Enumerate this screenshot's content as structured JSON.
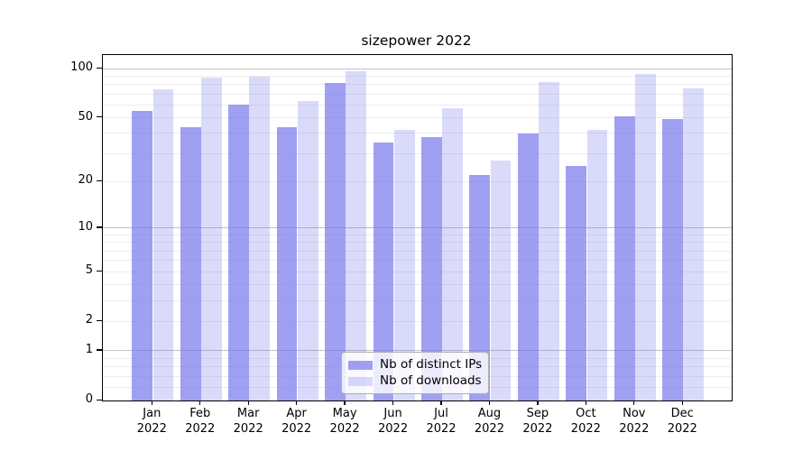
{
  "chart_data": {
    "type": "bar",
    "title": "sizepower 2022",
    "categories": [
      "Jan",
      "Feb",
      "Mar",
      "Apr",
      "May",
      "Jun",
      "Jul",
      "Aug",
      "Sep",
      "Oct",
      "Nov",
      "Dec"
    ],
    "year_label": "2022",
    "series": [
      {
        "name": "Nb of distinct IPs",
        "color": "rgba(109,109,237,0.65)",
        "values": [
          55,
          44,
          60,
          44,
          82,
          35,
          38,
          22,
          40,
          25,
          51,
          49
        ]
      },
      {
        "name": "Nb of downloads",
        "color": "rgba(109,109,237,0.25)",
        "values": [
          75,
          88,
          89,
          63,
          96,
          42,
          57,
          27,
          83,
          42,
          93,
          76
        ]
      }
    ],
    "yscale": "log1p",
    "ylim": [
      0,
      121
    ],
    "y_tick_values": [
      100,
      50,
      20,
      10,
      5,
      2,
      1,
      0
    ],
    "y_tick_labels": [
      "100",
      "50",
      "20",
      "10",
      "5",
      "2",
      "1",
      "0"
    ],
    "major_grid_values": [
      1,
      10,
      100
    ],
    "minor_grid_values": [
      0.2,
      0.4,
      0.6,
      0.8,
      2,
      3,
      4,
      5,
      6,
      7,
      8,
      9,
      20,
      30,
      40,
      50,
      60,
      70,
      80,
      90
    ],
    "grid": true,
    "legend_position": "lower center",
    "colors": {
      "major_grid": "#c3c3c3",
      "minor_grid": "#ededed",
      "axis": "#000000"
    }
  }
}
